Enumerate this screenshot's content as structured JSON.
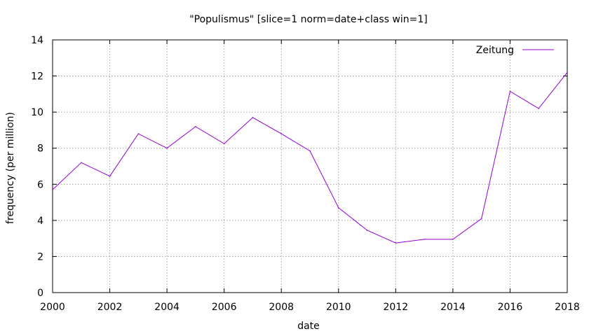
{
  "chart_data": {
    "type": "line",
    "title": "\"Populismus\" [slice=1 norm=date+class win=1]",
    "xlabel": "date",
    "ylabel": "frequency (per million)",
    "xlim": [
      2000,
      2018
    ],
    "ylim": [
      0,
      14
    ],
    "x_ticks": [
      2000,
      2002,
      2004,
      2006,
      2008,
      2010,
      2012,
      2014,
      2016,
      2018
    ],
    "y_ticks": [
      0,
      2,
      4,
      6,
      8,
      10,
      12,
      14
    ],
    "grid": true,
    "legend_position": "top-right",
    "series": [
      {
        "name": "Zeitung",
        "color": "#9400d3",
        "x": [
          2000,
          2001,
          2002,
          2003,
          2004,
          2005,
          2006,
          2007,
          2008,
          2009,
          2010,
          2011,
          2012,
          2013,
          2014,
          2015,
          2016,
          2017,
          2018
        ],
        "y": [
          5.7,
          7.2,
          6.45,
          8.8,
          8.0,
          9.2,
          8.25,
          9.7,
          8.8,
          7.85,
          4.7,
          3.45,
          2.75,
          2.95,
          2.95,
          4.1,
          11.15,
          10.2,
          12.2
        ]
      }
    ]
  }
}
